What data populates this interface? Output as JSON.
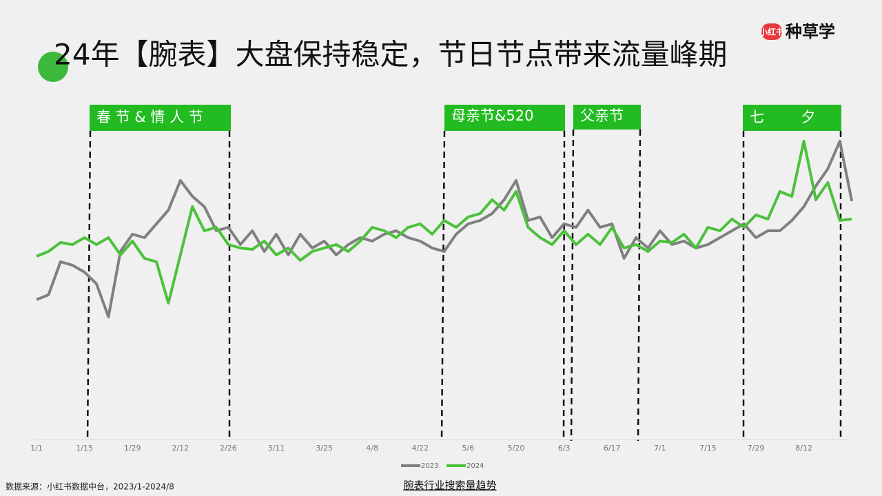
{
  "header": {
    "title": "24年【腕表】大盘保持稳定，节日节点带来流量峰期",
    "logo_badge": "小红书",
    "logo_text": "种草学"
  },
  "chart_data": {
    "type": "line",
    "caption": "腕表行业搜索量趋势",
    "categories": [
      "1/1",
      null,
      null,
      null,
      "1/15",
      null,
      null,
      null,
      "1/29",
      null,
      null,
      null,
      "2/12",
      null,
      null,
      null,
      "2/26",
      null,
      null,
      null,
      "3/11",
      null,
      null,
      null,
      "3/25",
      null,
      null,
      null,
      "4/8",
      null,
      null,
      null,
      "4/22",
      null,
      null,
      null,
      "5/6",
      null,
      null,
      null,
      "5/20",
      null,
      null,
      null,
      "6/3",
      null,
      null,
      null,
      "6/17",
      null,
      null,
      null,
      "7/1",
      null,
      null,
      null,
      "7/15",
      null,
      null,
      null,
      "7/29",
      null,
      null,
      null,
      "8/12",
      null,
      null,
      null,
      null
    ],
    "series": [
      {
        "name": "2023",
        "color": "#808080",
        "values": [
          203,
          210,
          258,
          253,
          243,
          226,
          178,
          273,
          298,
          293,
          313,
          333,
          376,
          353,
          338,
          303,
          308,
          283,
          303,
          273,
          298,
          268,
          298,
          278,
          288,
          268,
          283,
          293,
          288,
          298,
          303,
          293,
          288,
          278,
          273,
          298,
          313,
          318,
          328,
          348,
          376,
          318,
          323,
          293,
          313,
          308,
          333,
          308,
          313,
          263,
          293,
          278,
          303,
          283,
          288,
          278,
          283,
          293,
          303,
          313,
          293,
          303,
          303,
          318,
          338,
          368,
          393,
          433,
          346
        ]
      },
      {
        "name": "2024",
        "color": "#4cc13c",
        "values": [
          266,
          273,
          286,
          283,
          293,
          283,
          293,
          268,
          288,
          263,
          258,
          198,
          268,
          338,
          303,
          308,
          283,
          278,
          276,
          288,
          268,
          278,
          260,
          273,
          278,
          283,
          273,
          288,
          308,
          303,
          293,
          308,
          313,
          298,
          318,
          308,
          323,
          328,
          348,
          333,
          360,
          308,
          293,
          283,
          303,
          283,
          298,
          283,
          308,
          278,
          283,
          273,
          288,
          286,
          298,
          278,
          308,
          303,
          320,
          308,
          326,
          320,
          360,
          353,
          433,
          348,
          373,
          318,
          320
        ]
      }
    ],
    "ylim": [
      0,
      440
    ],
    "grid": false,
    "legend": "bottom",
    "annotations": [
      "春 节 & 情 人 节",
      "母亲节&520",
      "父亲节",
      "七        夕"
    ]
  },
  "footer": {
    "source": "数据来源：小红书数据中台，2023/1-2024/8"
  }
}
